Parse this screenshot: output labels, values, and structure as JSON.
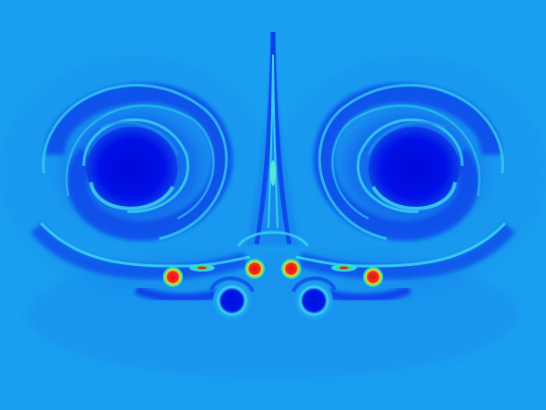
{
  "scene": {
    "colors": {
      "background": "#1aa0f0",
      "deep_blue": "#0010e8",
      "mid_blue": "#0a55ea",
      "cyan": "#35d8f0",
      "green": "#40e070",
      "yellow": "#f2f040",
      "red": "#ea1818"
    }
  }
}
